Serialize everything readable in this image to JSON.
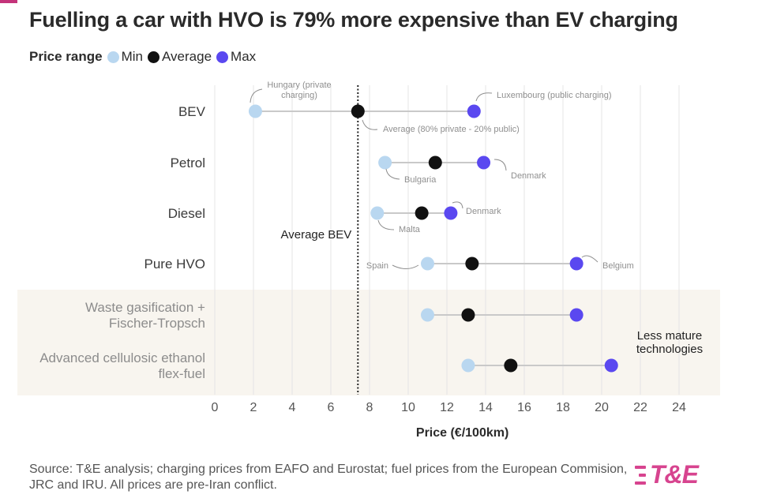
{
  "title": "Fuelling a car with HVO is 79% more expensive than EV charging",
  "legend": {
    "title": "Price range",
    "items": [
      {
        "label": "Min",
        "color": "#b9d7f0",
        "icon": "min-dot-icon"
      },
      {
        "label": "Average",
        "color": "#111111",
        "icon": "average-dot-icon"
      },
      {
        "label": "Max",
        "color": "#5a48f0",
        "icon": "max-dot-icon"
      }
    ]
  },
  "chart_data": {
    "type": "dumbbell",
    "xlabel": "Price (€/100km)",
    "xlim": [
      0,
      26
    ],
    "xticks": [
      0,
      2,
      4,
      6,
      8,
      10,
      12,
      14,
      16,
      18,
      20,
      22,
      24
    ],
    "colors": {
      "min": "#b9d7f0",
      "avg": "#111111",
      "max": "#5a48f0",
      "shade": "#f8f5ef",
      "range_line": "#c9c9c9"
    },
    "categories": [
      {
        "label": [
          "BEV"
        ],
        "min": 2.1,
        "avg": 7.4,
        "max": 13.4,
        "mature": true
      },
      {
        "label": [
          "Petrol"
        ],
        "min": 8.8,
        "avg": 11.4,
        "max": 13.9,
        "mature": true
      },
      {
        "label": [
          "Diesel"
        ],
        "min": 8.4,
        "avg": 10.7,
        "max": 12.2,
        "mature": true
      },
      {
        "label": [
          "Pure HVO"
        ],
        "min": 11.0,
        "avg": 13.3,
        "max": 18.7,
        "mature": true
      },
      {
        "label": [
          "Waste gasification +",
          "Fischer-Tropsch"
        ],
        "min": 11.0,
        "avg": 13.1,
        "max": 18.7,
        "mature": false
      },
      {
        "label": [
          "Advanced cellulosic ethanol",
          "flex-fuel"
        ],
        "min": 13.1,
        "avg": 15.3,
        "max": 20.5,
        "mature": false
      }
    ],
    "reference_line": {
      "value": 7.4,
      "label": "Average BEV"
    },
    "shaded_region_label": [
      "Less mature",
      "technologies"
    ],
    "annotations": [
      {
        "id": "hungary",
        "row": 0,
        "point": "min",
        "lines": [
          "Hungary (private",
          "charging)"
        ]
      },
      {
        "id": "luxembourg",
        "row": 0,
        "point": "max",
        "lines": [
          "Luxembourg (public charging)"
        ]
      },
      {
        "id": "bev-average",
        "row": 0,
        "point": "avg",
        "lines": [
          "Average (80% private - 20% public)"
        ]
      },
      {
        "id": "bulgaria",
        "row": 1,
        "point": "min",
        "lines": [
          "Bulgaria"
        ]
      },
      {
        "id": "denmark-petrol",
        "row": 1,
        "point": "max",
        "lines": [
          "Denmark"
        ]
      },
      {
        "id": "malta",
        "row": 2,
        "point": "min",
        "lines": [
          "Malta"
        ]
      },
      {
        "id": "denmark-diesel",
        "row": 2,
        "point": "max",
        "lines": [
          "Denmark"
        ]
      },
      {
        "id": "spain",
        "row": 3,
        "point": "min",
        "lines": [
          "Spain"
        ]
      },
      {
        "id": "belgium",
        "row": 3,
        "point": "max",
        "lines": [
          "Belgium"
        ]
      }
    ]
  },
  "source": "Source: T&E analysis; charging prices from EAFO and Eurostat; fuel prices from the European Commision, JRC and IRU. All prices are pre-Iran conflict.",
  "logo": {
    "text": "T&E",
    "color": "#d7448f"
  }
}
